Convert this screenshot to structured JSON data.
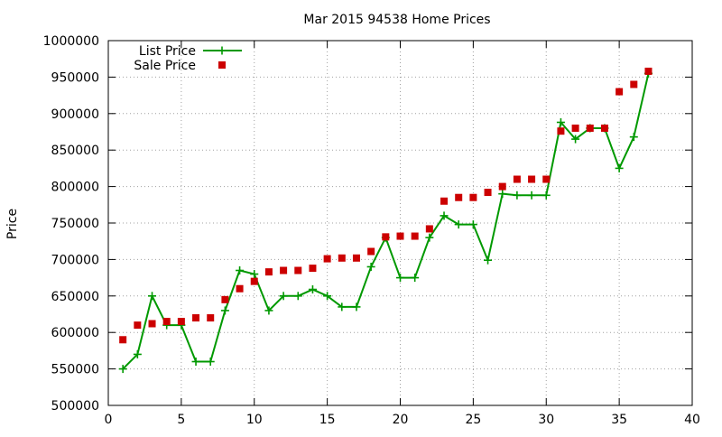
{
  "chart_data": {
    "type": "line",
    "title": "Mar 2015 94538 Home Prices",
    "xlabel": "",
    "ylabel": "Price",
    "xlim": [
      0,
      40
    ],
    "ylim": [
      500000,
      1000000
    ],
    "x_ticks": [
      0,
      5,
      10,
      15,
      20,
      25,
      30,
      35,
      40
    ],
    "y_ticks": [
      500000,
      550000,
      600000,
      650000,
      700000,
      750000,
      800000,
      850000,
      900000,
      950000,
      1000000
    ],
    "grid": true,
    "legend_position": "top-left",
    "series": [
      {
        "name": "List Price",
        "style": "line-with-plus-markers",
        "color": "#009900",
        "x": [
          1,
          2,
          3,
          4,
          5,
          6,
          7,
          8,
          9,
          10,
          11,
          12,
          13,
          14,
          15,
          16,
          17,
          18,
          19,
          20,
          21,
          22,
          23,
          24,
          25,
          26,
          27,
          28,
          29,
          30,
          31,
          32,
          33,
          34,
          35,
          36,
          37
        ],
        "y": [
          550000,
          570000,
          650000,
          610000,
          610000,
          560000,
          560000,
          630000,
          685000,
          680000,
          630000,
          650000,
          650000,
          659000,
          650000,
          635000,
          635000,
          690000,
          730000,
          675000,
          675000,
          730000,
          760000,
          748000,
          748000,
          699000,
          790000,
          788000,
          788000,
          788000,
          888000,
          865000,
          880000,
          880000,
          825000,
          868000,
          955000
        ]
      },
      {
        "name": "Sale Price",
        "style": "square-points",
        "color": "#cc0000",
        "x": [
          1,
          2,
          3,
          4,
          5,
          6,
          7,
          8,
          9,
          10,
          11,
          12,
          13,
          14,
          15,
          16,
          17,
          18,
          19,
          20,
          21,
          22,
          23,
          24,
          25,
          26,
          27,
          28,
          29,
          30,
          31,
          32,
          33,
          34,
          35,
          36,
          37
        ],
        "y": [
          590000,
          610000,
          612000,
          615000,
          615000,
          620000,
          620000,
          645000,
          660000,
          670000,
          683000,
          685000,
          685000,
          688000,
          701000,
          702000,
          702000,
          711000,
          731000,
          732000,
          732000,
          742000,
          780000,
          785000,
          785000,
          792000,
          800000,
          810000,
          810000,
          810000,
          876000,
          880000,
          880000,
          880000,
          930000,
          940000,
          958000
        ]
      }
    ]
  }
}
